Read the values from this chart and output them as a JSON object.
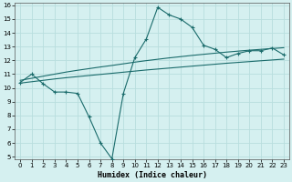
{
  "title": "",
  "xlabel": "Humidex (Indice chaleur)",
  "ylabel": "",
  "bg_color": "#d5f0f0",
  "grid_color": "#b8dede",
  "line_color": "#1a6b6b",
  "xlim": [
    -0.5,
    23.5
  ],
  "ylim": [
    4.8,
    16.2
  ],
  "xticks": [
    0,
    1,
    2,
    3,
    4,
    5,
    6,
    7,
    8,
    9,
    10,
    11,
    12,
    13,
    14,
    15,
    16,
    17,
    18,
    19,
    20,
    21,
    22,
    23
  ],
  "yticks": [
    5,
    6,
    7,
    8,
    9,
    10,
    11,
    12,
    13,
    14,
    15,
    16
  ],
  "line1_x": [
    0,
    1,
    2,
    3,
    4,
    5,
    6,
    7,
    8,
    9,
    10,
    11,
    12,
    13,
    14,
    15,
    16,
    17,
    18,
    19,
    20,
    21,
    22,
    23
  ],
  "line1_y": [
    10.4,
    11.0,
    10.3,
    9.7,
    9.7,
    9.6,
    7.9,
    6.0,
    4.85,
    9.6,
    12.2,
    13.55,
    15.85,
    15.3,
    15.0,
    14.4,
    13.1,
    12.8,
    12.2,
    12.5,
    12.7,
    12.7,
    12.9,
    12.4
  ],
  "line2_x": [
    0,
    1,
    2,
    3,
    4,
    5,
    6,
    7,
    8,
    9,
    10,
    11,
    12,
    13,
    14,
    15,
    16,
    17,
    18,
    19,
    20,
    21,
    22,
    23
  ],
  "line2_y": [
    10.55,
    10.7,
    10.85,
    11.0,
    11.15,
    11.28,
    11.4,
    11.52,
    11.63,
    11.75,
    11.87,
    11.98,
    12.08,
    12.18,
    12.27,
    12.36,
    12.44,
    12.52,
    12.6,
    12.67,
    12.74,
    12.8,
    12.86,
    12.92
  ],
  "line3_x": [
    0,
    1,
    2,
    3,
    4,
    5,
    6,
    7,
    8,
    9,
    10,
    11,
    12,
    13,
    14,
    15,
    16,
    17,
    18,
    19,
    20,
    21,
    22,
    23
  ],
  "line3_y": [
    10.35,
    10.45,
    10.55,
    10.65,
    10.74,
    10.82,
    10.9,
    10.98,
    11.06,
    11.14,
    11.22,
    11.3,
    11.37,
    11.44,
    11.51,
    11.58,
    11.65,
    11.72,
    11.79,
    11.85,
    11.91,
    11.97,
    12.03,
    12.09
  ],
  "marker": "+",
  "markersize": 3,
  "linewidth": 0.8,
  "tick_fontsize": 5,
  "xlabel_fontsize": 6
}
